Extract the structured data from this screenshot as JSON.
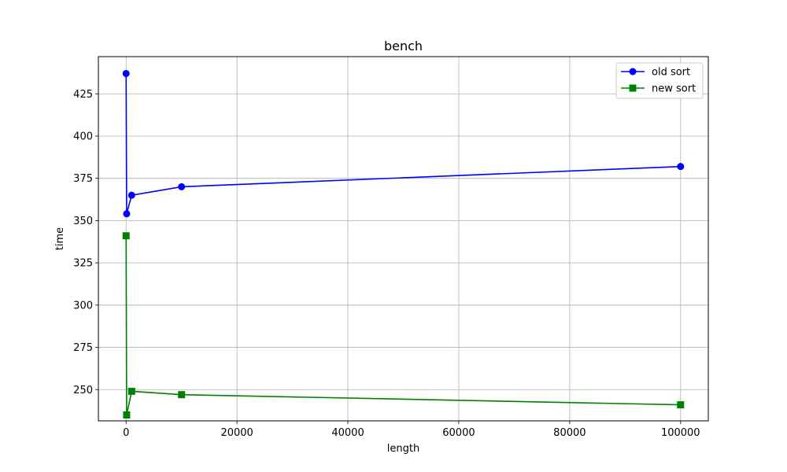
{
  "chart_data": {
    "type": "line",
    "title": "bench",
    "xlabel": "length",
    "ylabel": "time",
    "xlim": [
      -5000,
      105000
    ],
    "ylim": [
      231.5,
      447
    ],
    "xticks": [
      0,
      20000,
      40000,
      60000,
      80000,
      100000
    ],
    "yticks": [
      250,
      275,
      300,
      325,
      350,
      375,
      400,
      425
    ],
    "grid": true,
    "legend_position": "top-right",
    "x": [
      1,
      100,
      1000,
      10000,
      100000
    ],
    "series": [
      {
        "name": "old sort",
        "values": [
          437,
          354,
          365,
          370,
          382
        ],
        "color": "#0000ff",
        "marker": "circle"
      },
      {
        "name": "new sort",
        "values": [
          341,
          235,
          249,
          247,
          241
        ],
        "color": "#008000",
        "marker": "square"
      }
    ]
  }
}
